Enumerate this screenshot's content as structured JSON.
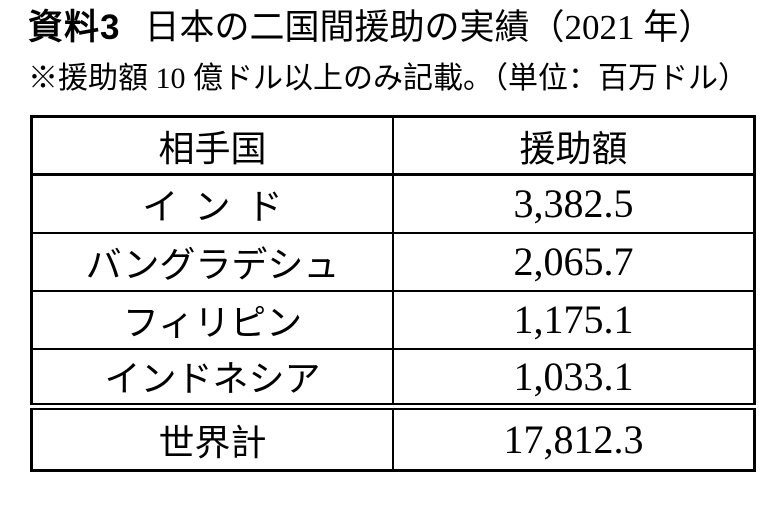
{
  "page": {
    "background": "#ffffff",
    "text_color": "#000000",
    "border_color": "#000000",
    "title": {
      "label": "資料3",
      "text": "日本の二国間援助の実績（2021 年）"
    },
    "note": "※援助額 10 億ドル以上のみ記載。（単位：百万ドル）"
  },
  "table": {
    "headers": {
      "country": "相手国",
      "amount": "援助額"
    },
    "rows": [
      {
        "country": "インド",
        "amount": "3,382.5"
      },
      {
        "country": "バングラデシュ",
        "amount": "2,065.7"
      },
      {
        "country": "フィリピン",
        "amount": "1,175.1"
      },
      {
        "country": "インドネシア",
        "amount": "1,033.1"
      }
    ],
    "total": {
      "country": "世界計",
      "amount": "17,812.3"
    }
  },
  "chart_data": {
    "type": "table",
    "title": "資料3 日本の二国間援助の実績（2021年）",
    "unit": "百万ドル",
    "note": "援助額10億ドル以上のみ記載",
    "columns": [
      "相手国",
      "援助額"
    ],
    "records": [
      [
        "インド",
        3382.5
      ],
      [
        "バングラデシュ",
        2065.7
      ],
      [
        "フィリピン",
        1175.1
      ],
      [
        "インドネシア",
        1033.1
      ],
      [
        "世界計",
        17812.3
      ]
    ]
  }
}
